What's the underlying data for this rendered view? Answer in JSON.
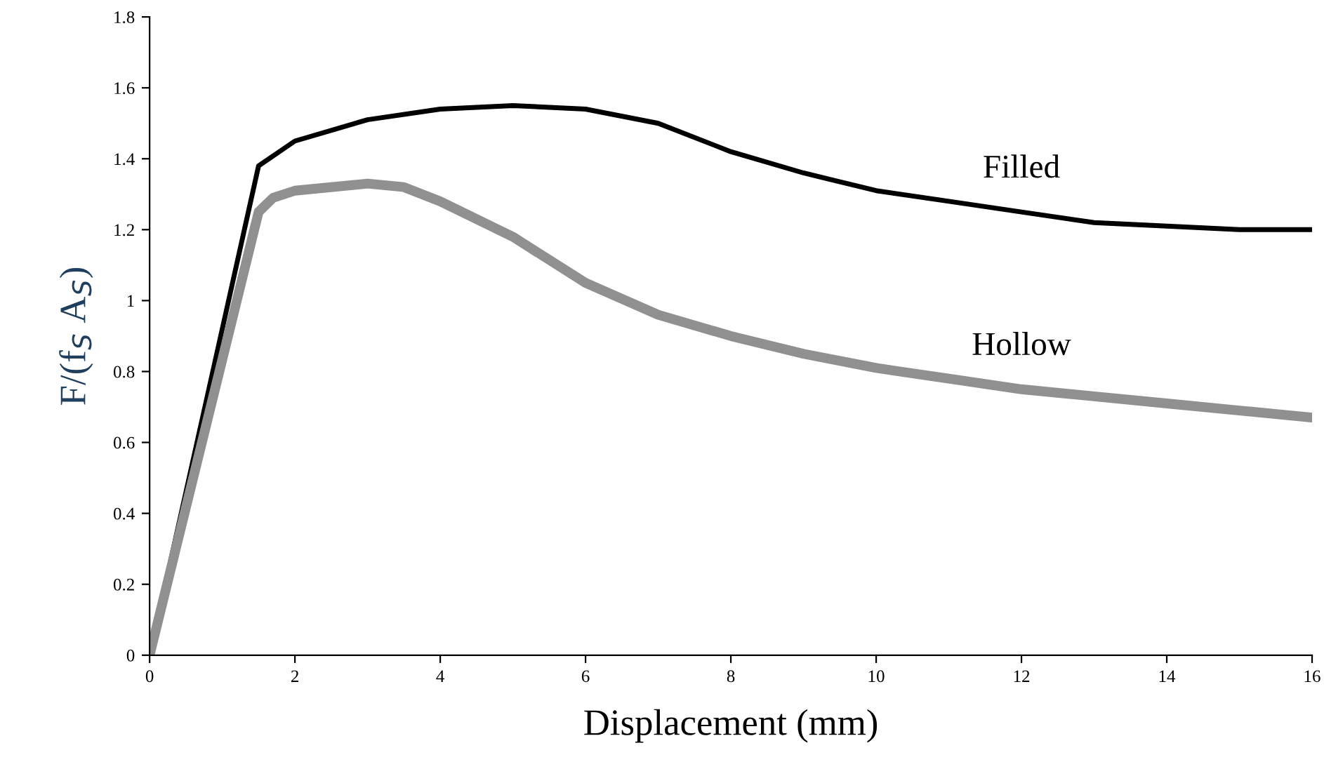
{
  "chart_data": {
    "type": "line",
    "xlabel": "Displacement (mm)",
    "ylabel": "F/(f$_{S}$ A$_{S}$)",
    "xlim": [
      0,
      16
    ],
    "xticks": [
      0,
      2,
      4,
      6,
      8,
      10,
      12,
      14,
      16
    ],
    "ylim": [
      0,
      1.8
    ],
    "yticks": [
      0,
      0.2,
      0.4,
      0.6,
      0.8,
      1,
      1.2,
      1.4,
      1.6,
      1.8
    ],
    "grid": false,
    "legend": false,
    "marker": "none",
    "line_style": "solid",
    "series": [
      {
        "name": "Filled",
        "color": "#000000",
        "x": [
          0,
          1.5,
          2,
          3,
          4,
          5,
          6,
          7,
          8,
          9,
          10,
          11,
          12,
          13,
          14,
          15,
          16
        ],
        "values": [
          0,
          1.38,
          1.45,
          1.51,
          1.54,
          1.55,
          1.54,
          1.5,
          1.42,
          1.36,
          1.31,
          1.28,
          1.25,
          1.22,
          1.21,
          1.2,
          1.2
        ]
      },
      {
        "name": "Hollow",
        "color": "#909090",
        "x": [
          0,
          1.5,
          1.7,
          2,
          3,
          3.5,
          4,
          5,
          6,
          7,
          8,
          9,
          10,
          11,
          12,
          13,
          14,
          15,
          16
        ],
        "values": [
          0,
          1.25,
          1.29,
          1.31,
          1.33,
          1.32,
          1.28,
          1.18,
          1.05,
          0.96,
          0.9,
          0.85,
          0.81,
          0.78,
          0.75,
          0.73,
          0.71,
          0.69,
          0.67
        ]
      }
    ]
  }
}
